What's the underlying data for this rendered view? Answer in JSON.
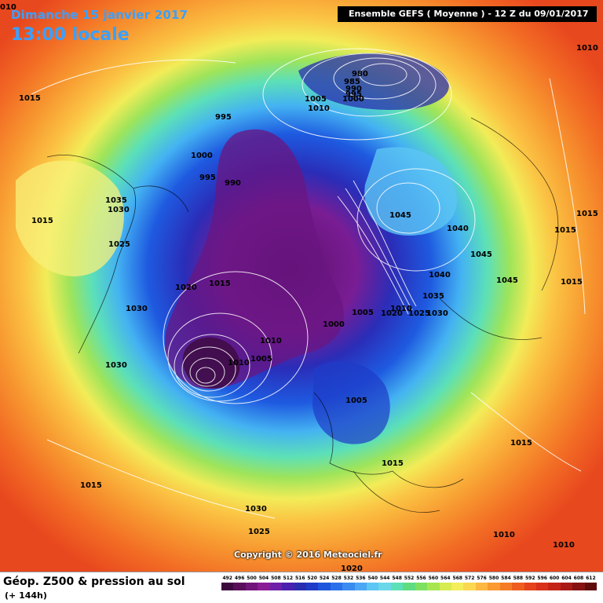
{
  "header": {
    "date_label": "Dimanche 15 janvier 2017",
    "time_label": "13:00 locale",
    "corner_value": "010",
    "run_label": "Ensemble GEFS  ( Moyenne )  -  12 Z du 09/01/2017"
  },
  "copyright": "Copyright © 2016 Meteociel.fr",
  "footer": {
    "title": "Géop. Z500 & pression au sol",
    "forecast_step": "(+ 144h)"
  },
  "legend": {
    "values": [
      "492",
      "496",
      "500",
      "504",
      "508",
      "512",
      "516",
      "520",
      "524",
      "528",
      "532",
      "536",
      "540",
      "544",
      "548",
      "552",
      "556",
      "560",
      "564",
      "568",
      "572",
      "576",
      "580",
      "584",
      "588",
      "592",
      "596",
      "600",
      "604",
      "608",
      "612"
    ],
    "colors": [
      "#3d0a3d",
      "#5a0f5a",
      "#72157a",
      "#8a1c96",
      "#6d1fa8",
      "#4b1fb0",
      "#2a2db0",
      "#1e3cc8",
      "#1d55dc",
      "#2a70ea",
      "#3a8cf0",
      "#4ca8f4",
      "#5cc6f4",
      "#6ad8e8",
      "#5ce0b8",
      "#60dc80",
      "#7ee060",
      "#a8e650",
      "#d6ec50",
      "#f4ee5a",
      "#fad850",
      "#fcb840",
      "#fa9a30",
      "#f47c26",
      "#ee5e20",
      "#e6421c",
      "#d8301a",
      "#c42418",
      "#a81a16",
      "#861212",
      "#5e0c0c"
    ]
  },
  "pressure_labels": [
    "1010",
    "1015",
    "995",
    "1000",
    "995",
    "990",
    "1035",
    "1030",
    "1025",
    "1015",
    "1020",
    "1030",
    "1030",
    "1015",
    "980",
    "985",
    "990",
    "995",
    "1000",
    "1005",
    "1010",
    "1045",
    "1040",
    "1045",
    "1040",
    "1035",
    "1030",
    "1020",
    "1025",
    "1010",
    "1000",
    "1005",
    "1010",
    "1005",
    "1005",
    "1015",
    "1045",
    "1015",
    "1015",
    "1015",
    "1015",
    "1010",
    "1015",
    "1030",
    "1025",
    "1020",
    "1010",
    "1010"
  ]
}
